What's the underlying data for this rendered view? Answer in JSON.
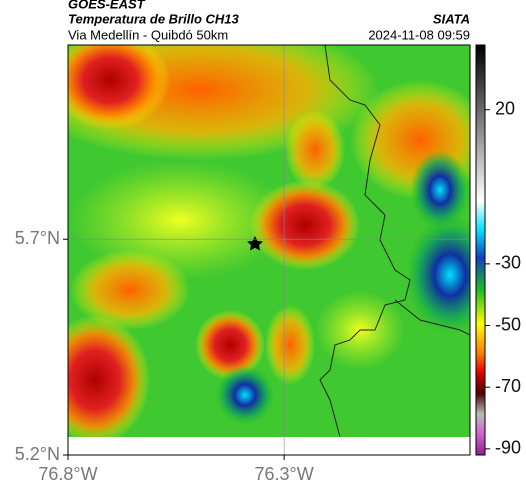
{
  "chart_data": {
    "type": "map",
    "title": "GOES-EAST",
    "subtitle": "Temperatura de Brillo CH13",
    "source": "SIATA",
    "region": "Via Medellín - Quibdó 50km",
    "datetime": "2024-11-08 09:59",
    "xlim": [
      -76.8,
      -75.87
    ],
    "ylim": [
      5.2,
      6.15
    ],
    "xticks": [
      {
        "value": -76.8,
        "label": "76.8°W"
      },
      {
        "value": -76.3,
        "label": "76.3°W"
      }
    ],
    "yticks": [
      {
        "value": 5.2,
        "label": "5.2°N"
      },
      {
        "value": 5.7,
        "label": "5.7°N"
      }
    ],
    "grid": true,
    "clim": [
      -92,
      41
    ],
    "cticks": [
      20,
      -30,
      -50,
      -70,
      -90
    ]
  }
}
